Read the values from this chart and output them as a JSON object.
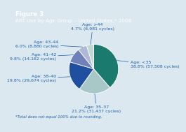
{
  "title_bold": "Figure 3",
  "title_main": "ART Use by Age Group – United States,* 2008",
  "footnote": "*Total does not equal 100% due to rounding.",
  "slices": [
    {
      "label": "Age: <35",
      "pct": 38.8,
      "cycles": "57,508 cycles",
      "color": "#1a7a6e"
    },
    {
      "label": "Age: 35–37",
      "pct": 21.2,
      "cycles": "31,437 cycles",
      "color": "#a8c8c8"
    },
    {
      "label": "Age: 38–40",
      "pct": 19.8,
      "cycles": "29,674 cycles",
      "color": "#1f4fa0"
    },
    {
      "label": "Age: 41–42",
      "pct": 9.8,
      "cycles": "14,162 cycles",
      "color": "#7080b8"
    },
    {
      "label": "Age: 43–44",
      "pct": 6.0,
      "cycles": "8,880 cycles",
      "color": "#b0b8d8"
    },
    {
      "label": "Age: >44",
      "pct": 4.7,
      "cycles": "6,981 cycles",
      "color": "#c0d8d0"
    }
  ],
  "background_color": "#dce8f0",
  "header_color": "#1a5fa8",
  "text_color": "#1a5fa8",
  "startangle": 90,
  "label_fontsize": 4.5,
  "title_fontsize": 5.2,
  "bold_fontsize": 6.2,
  "footnote_fontsize": 4.0,
  "label_positions": [
    {
      "xt": 0.68,
      "yt": 0.08,
      "ha": "left",
      "va": "center"
    },
    {
      "xt": 0.05,
      "yt": -0.68,
      "ha": "center",
      "va": "top"
    },
    {
      "xt": -0.7,
      "yt": -0.18,
      "ha": "right",
      "va": "center"
    },
    {
      "xt": -0.7,
      "yt": 0.22,
      "ha": "right",
      "va": "center"
    },
    {
      "xt": -0.65,
      "yt": 0.46,
      "ha": "right",
      "va": "center"
    },
    {
      "xt": -0.02,
      "yt": 0.72,
      "ha": "center",
      "va": "bottom"
    }
  ]
}
